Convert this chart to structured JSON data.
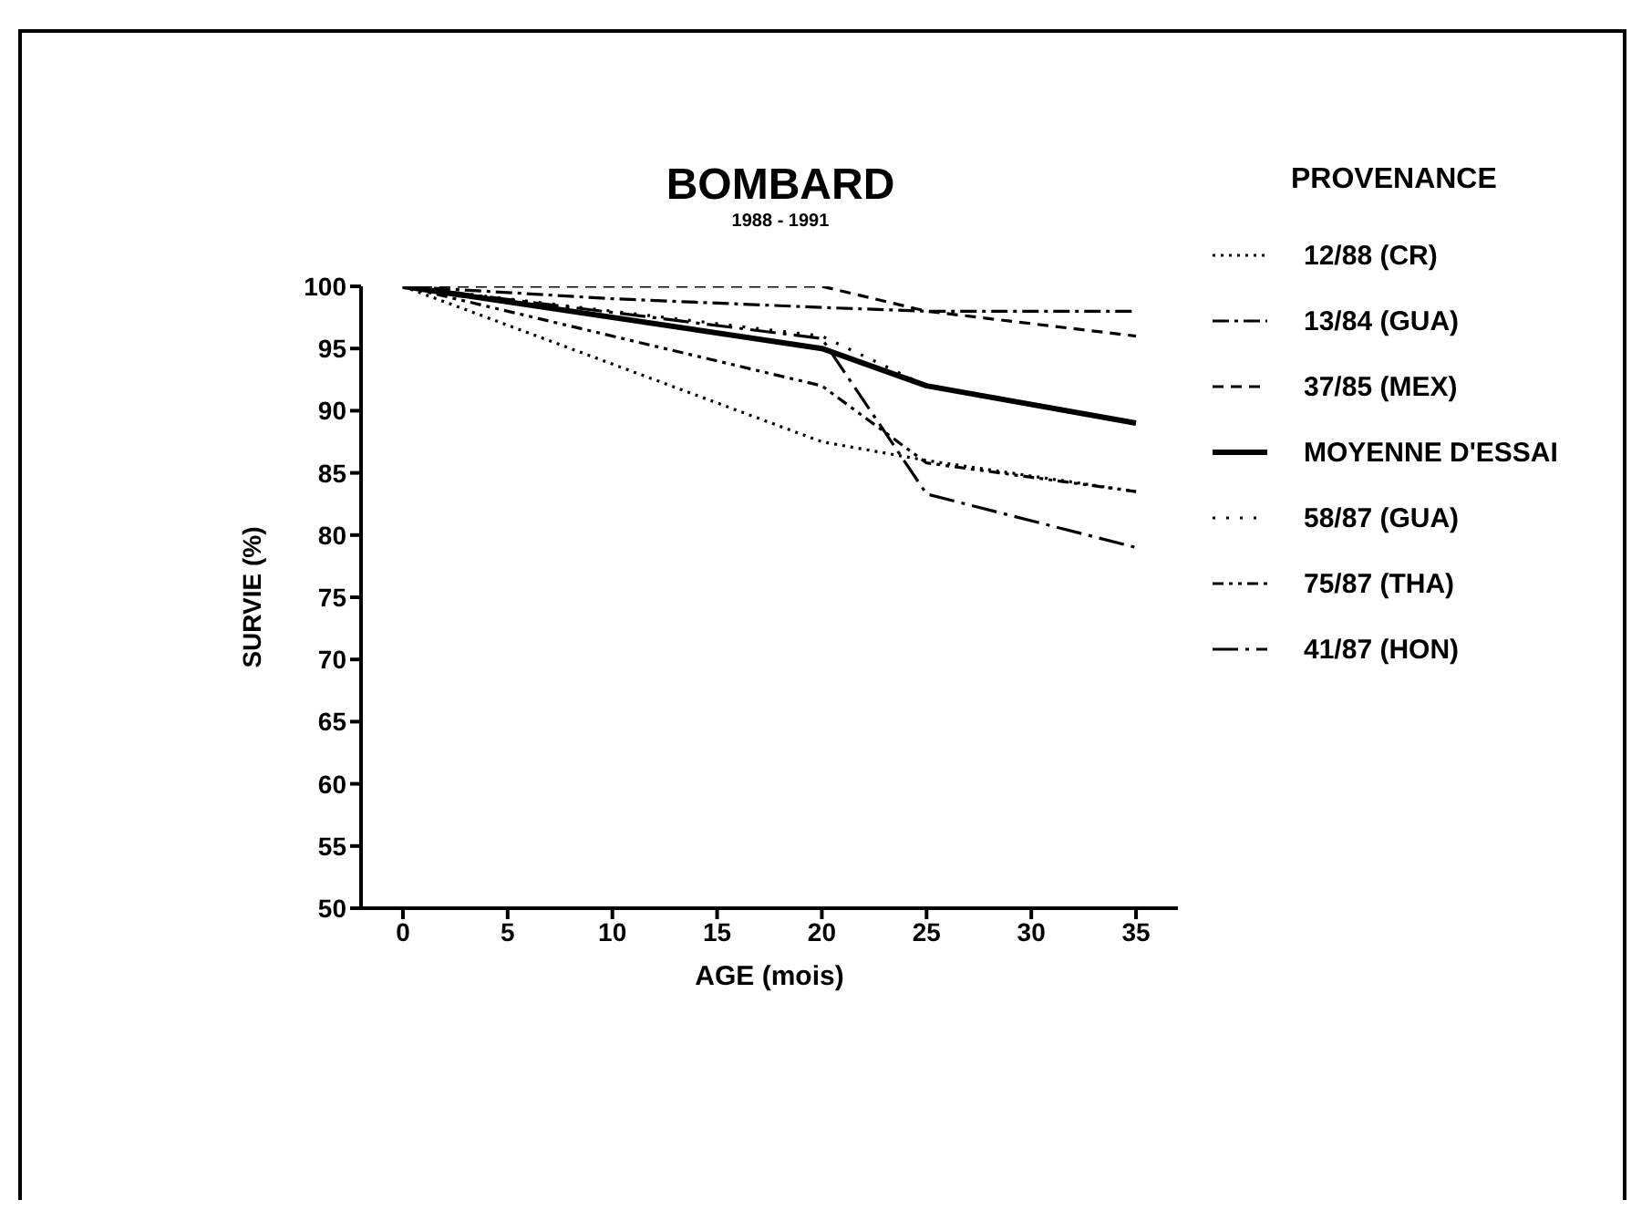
{
  "chart_data": {
    "type": "line",
    "title": "BOMBARD",
    "subtitle": "1988 - 1991",
    "xlabel": "AGE (mois)",
    "ylabel": "SURVIE (%)",
    "legend_title": "PROVENANCE",
    "legend": "right",
    "xlim": [
      -2,
      37
    ],
    "xticks": [
      0,
      5,
      10,
      15,
      20,
      25,
      30,
      35
    ],
    "ylim": [
      50,
      100
    ],
    "yticks": [
      50,
      55,
      60,
      65,
      70,
      75,
      80,
      85,
      90,
      95,
      100
    ],
    "marker": "none",
    "series": [
      {
        "name": "12/88 (CR)",
        "color": "#000000",
        "line_style": "dotted",
        "x": [
          0,
          20,
          25,
          35
        ],
        "values": [
          100,
          87.5,
          86,
          83.5
        ]
      },
      {
        "name": "13/84 (GUA)",
        "color": "#000000",
        "line_style": "dashdot",
        "x": [
          0,
          10,
          20,
          25,
          35
        ],
        "values": [
          100,
          99,
          98.3,
          98,
          98
        ]
      },
      {
        "name": "37/85 (MEX)",
        "color": "#000000",
        "line_style": "dashed",
        "x": [
          0,
          20,
          25,
          35
        ],
        "values": [
          100,
          100,
          98,
          96
        ]
      },
      {
        "name": "MOYENNE D'ESSAI",
        "color": "#000000",
        "line_style": "solid",
        "x": [
          0,
          20,
          25,
          35
        ],
        "values": [
          100,
          95,
          92,
          89
        ]
      },
      {
        "name": "58/87 (GUA)",
        "color": "#000000",
        "line_style": "sparse_dotted",
        "x": [
          0,
          20,
          25,
          35
        ],
        "values": [
          100,
          96,
          92,
          89
        ]
      },
      {
        "name": "75/87 (THA)",
        "color": "#000000",
        "line_style": "dashdotdot",
        "x": [
          0,
          20,
          25,
          35
        ],
        "values": [
          100,
          92,
          85.8,
          83.5
        ]
      },
      {
        "name": "41/87 (HON)",
        "color": "#000000",
        "line_style": "longdashdot",
        "x": [
          0,
          20,
          25,
          35
        ],
        "values": [
          100,
          95.8,
          83.3,
          79
        ]
      }
    ]
  }
}
